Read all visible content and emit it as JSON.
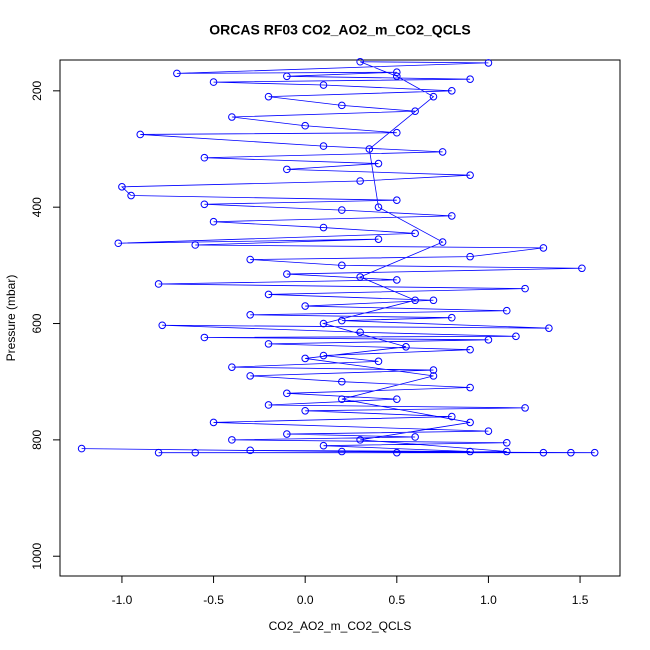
{
  "chart_data": {
    "type": "scatter-line",
    "title": "ORCAS RF03 CO2_AO2_m_CO2_QCLS",
    "x_label": "CO2_AO2_m_CO2_QCLS",
    "y_label": "Pressure (mbar)",
    "xlim": [
      -1.338,
      1.718
    ],
    "ylim": [
      147,
      1034
    ],
    "y_inverted": true,
    "xticks": [
      {
        "value": -1,
        "label": "-1.0"
      },
      -0.5,
      {
        "value": 0,
        "label": "0.0"
      },
      0.5,
      {
        "value": 1,
        "label": "1.0"
      },
      1.5
    ],
    "yticks": [
      200,
      400,
      600,
      800,
      1000
    ],
    "series": [
      {
        "color": "#0000ff",
        "x": [
          -1.22,
          0.2,
          1.58,
          -0.8,
          1.3,
          -0.3,
          0.9,
          0.1,
          1.1,
          -0.4,
          0.6,
          -0.1,
          1.0,
          -0.5,
          0.8,
          0.0,
          1.2,
          -0.2,
          0.5,
          -0.1,
          0.9,
          0.2,
          -0.3,
          0.7,
          -0.4,
          0.4,
          0.1,
          0.9,
          -0.2,
          1.0,
          -0.55,
          1.15,
          0.3,
          -0.78,
          1.33,
          0.2,
          0.8,
          -0.3,
          1.1,
          0.0,
          0.7,
          -0.2,
          1.2,
          -0.8,
          0.5,
          -0.1,
          1.51,
          0.2,
          -0.3,
          0.9,
          1.3,
          -0.6,
          0.4,
          -1.02,
          0.6,
          0.1,
          -0.5,
          0.8,
          0.2,
          -0.55,
          0.5,
          -0.95,
          -1.0,
          0.3,
          0.9,
          -0.1,
          0.4,
          -0.55,
          0.75,
          0.1,
          -0.9,
          0.5,
          0.0,
          -0.4,
          0.6,
          0.2,
          -0.2,
          0.8,
          0.1,
          -0.5,
          0.9,
          -0.1,
          0.5,
          -0.7,
          1.0,
          0.3,
          0.5,
          0.7,
          0.35,
          0.4,
          0.75,
          0.3,
          0.6,
          0.1,
          0.55,
          0.0,
          0.7,
          0.2,
          0.9,
          0.3,
          1.1,
          0.5,
          -0.6,
          1.45
        ],
        "values": [
          815,
          820,
          822,
          822,
          822,
          818,
          820,
          810,
          805,
          800,
          795,
          790,
          785,
          770,
          760,
          750,
          745,
          740,
          730,
          720,
          710,
          700,
          690,
          680,
          675,
          665,
          655,
          645,
          635,
          628,
          624,
          622,
          615,
          603,
          608,
          595,
          590,
          585,
          578,
          570,
          560,
          550,
          540,
          532,
          525,
          515,
          505,
          500,
          490,
          485,
          470,
          465,
          455,
          462,
          445,
          435,
          425,
          415,
          405,
          395,
          388,
          380,
          365,
          355,
          345,
          335,
          325,
          315,
          305,
          295,
          275,
          272,
          260,
          245,
          235,
          225,
          210,
          200,
          190,
          185,
          180,
          175,
          168,
          170,
          152,
          150,
          175,
          210,
          300,
          400,
          460,
          520,
          560,
          600,
          640,
          660,
          690,
          730,
          770,
          800,
          820,
          822,
          822,
          822
        ]
      }
    ]
  }
}
